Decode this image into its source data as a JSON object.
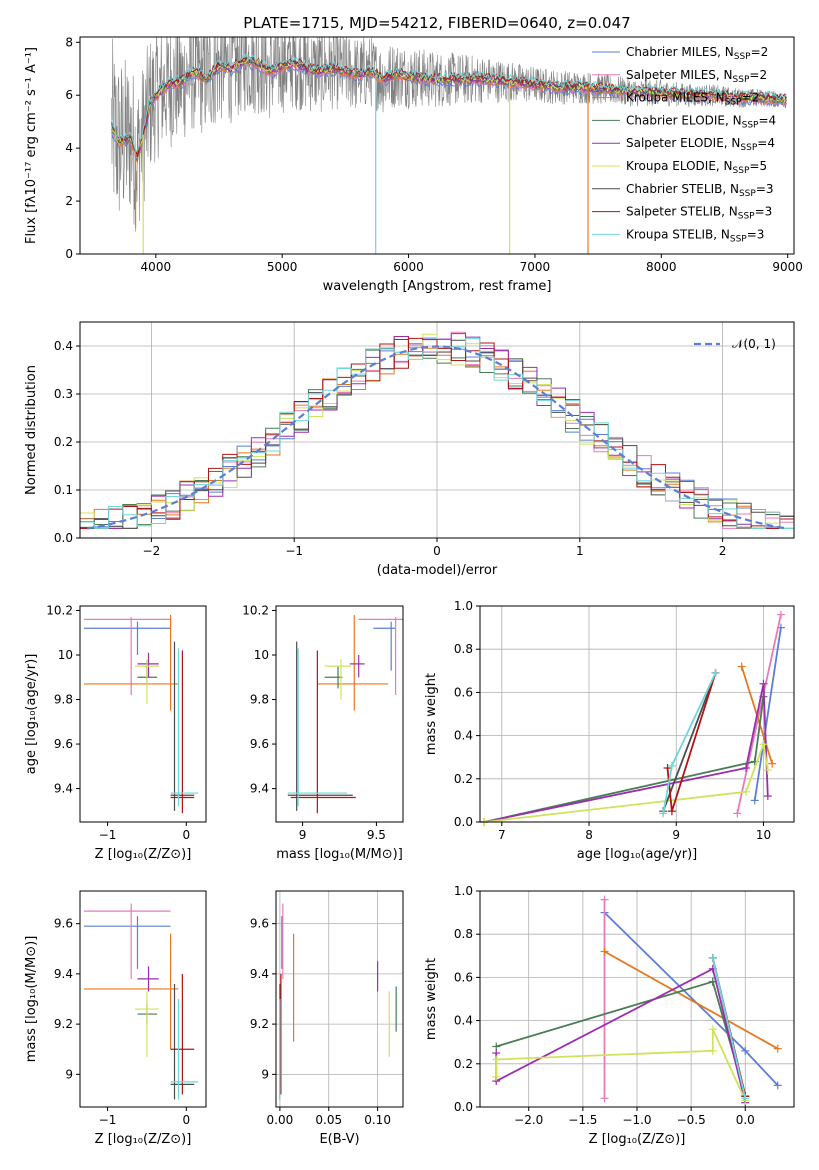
{
  "title": "PLATE=1715, MJD=54212, FIBERID=0640, z=0.047",
  "colors": {
    "Chabrier MILES": "#5b7fd6",
    "Salpeter MILES": "#e87ab8",
    "Kroupa MILES": "#e6781e",
    "Chabrier ELODIE": "#4a7c55",
    "Salpeter ELODIE": "#9a2db0",
    "Kroupa ELODIE": "#cfe35a",
    "Chabrier STELIB": "#4d4d4d",
    "Salpeter STELIB": "#b31313",
    "Kroupa STELIB": "#6fd6d9",
    "data": "#808080",
    "normal": "#5b7fd6"
  },
  "chart_data": [
    {
      "id": "spectrum",
      "type": "line",
      "xlabel": "wavelength [Angstrom, rest frame]",
      "ylabel": "Flux [fλ10⁻¹⁷ erg cm⁻² s⁻¹ A⁻¹]",
      "xlim": [
        3400,
        9050
      ],
      "ylim": [
        0,
        8.2
      ],
      "xticks": [
        4000,
        5000,
        6000,
        7000,
        8000,
        9000
      ],
      "yticks": [
        0,
        2,
        4,
        6,
        8
      ],
      "legend_position": "upper right",
      "legend": [
        {
          "label": "Chabrier MILES, N",
          "sub": "SSP",
          "suffix": "=2"
        },
        {
          "label": "Salpeter MILES, N",
          "sub": "SSP",
          "suffix": "=2"
        },
        {
          "label": "Kroupa MILES, N",
          "sub": "SSP",
          "suffix": "=2"
        },
        {
          "label": "Chabrier ELODIE, N",
          "sub": "SSP",
          "suffix": "=4"
        },
        {
          "label": "Salpeter ELODIE, N",
          "sub": "SSP",
          "suffix": "=4"
        },
        {
          "label": "Kroupa ELODIE, N",
          "sub": "SSP",
          "suffix": "=5"
        },
        {
          "label": "Chabrier STELIB, N",
          "sub": "SSP",
          "suffix": "=3"
        },
        {
          "label": "Salpeter STELIB, N",
          "sub": "SSP",
          "suffix": "=3"
        },
        {
          "label": "Kroupa STELIB, N",
          "sub": "SSP",
          "suffix": "=3"
        }
      ],
      "model_continuum": [
        [
          3650,
          4.8
        ],
        [
          3700,
          4.2
        ],
        [
          3800,
          4.4
        ],
        [
          3850,
          3.6
        ],
        [
          3900,
          4.5
        ],
        [
          3950,
          5.6
        ],
        [
          4000,
          6.0
        ],
        [
          4100,
          6.4
        ],
        [
          4200,
          6.5
        ],
        [
          4300,
          6.9
        ],
        [
          4400,
          6.6
        ],
        [
          4500,
          7.1
        ],
        [
          4600,
          7.0
        ],
        [
          4700,
          7.3
        ],
        [
          4800,
          7.2
        ],
        [
          4900,
          6.9
        ],
        [
          5000,
          7.1
        ],
        [
          5100,
          7.2
        ],
        [
          5200,
          7.0
        ],
        [
          5300,
          6.9
        ],
        [
          5400,
          7.0
        ],
        [
          5500,
          6.9
        ],
        [
          5600,
          6.8
        ],
        [
          5700,
          6.9
        ],
        [
          5800,
          6.6
        ],
        [
          5900,
          6.8
        ],
        [
          6000,
          6.7
        ],
        [
          6200,
          6.6
        ],
        [
          6400,
          6.6
        ],
        [
          6600,
          6.6
        ],
        [
          6800,
          6.5
        ],
        [
          7000,
          6.4
        ],
        [
          7200,
          6.3
        ],
        [
          7400,
          6.3
        ],
        [
          7600,
          6.2
        ],
        [
          7800,
          6.1
        ],
        [
          8000,
          6.1
        ],
        [
          8200,
          6.0
        ],
        [
          8400,
          6.0
        ],
        [
          8600,
          5.9
        ],
        [
          8800,
          5.9
        ],
        [
          8990,
          5.8
        ]
      ],
      "model_drops": [
        [
          3840,
          1.0,
          "Kroupa MILES"
        ],
        [
          3900,
          0.0,
          "Kroupa ELODIE"
        ],
        [
          5740,
          0.0,
          "Kroupa STELIB"
        ],
        [
          6800,
          0.0,
          "Kroupa ELODIE"
        ],
        [
          7420,
          0.0,
          "Kroupa MILES"
        ]
      ],
      "data_noise_envelope": [
        [
          3650,
          3.5
        ],
        [
          4000,
          2.5
        ],
        [
          5000,
          1.8
        ],
        [
          6000,
          1.2
        ],
        [
          7000,
          0.7
        ],
        [
          8000,
          0.5
        ],
        [
          9000,
          0.3
        ]
      ]
    },
    {
      "id": "residuals",
      "type": "histogram",
      "xlabel": "(data-model)/error",
      "ylabel": "Normed distribution",
      "xlim": [
        -2.5,
        2.5
      ],
      "ylim": [
        0,
        0.45
      ],
      "xticks": [
        -2,
        -1,
        0,
        1,
        2
      ],
      "yticks": [
        0.0,
        0.1,
        0.2,
        0.3,
        0.4
      ],
      "legend": "𝒩(0, 1)",
      "legend_position": "upper right",
      "bin_width": 0.1,
      "bin_start": -2.5
    },
    {
      "id": "age-vs-Z",
      "type": "errorbar",
      "xlabel": "Z [log₁₀(Z/Z⊙)]",
      "ylabel": "age  [log₁₀(age/yr)]",
      "xlim": [
        -1.35,
        0.25
      ],
      "ylim": [
        9.25,
        10.22
      ],
      "xticks": [
        -1,
        0
      ],
      "yticks": [
        9.4,
        9.6,
        9.8,
        10.0,
        10.2
      ],
      "points": [
        {
          "model": "Chabrier MILES",
          "x": -0.62,
          "y": 10.12,
          "xlo": -1.3,
          "xhi": -0.2,
          "ylo": 10.0,
          "yhi": 10.15
        },
        {
          "model": "Salpeter MILES",
          "x": -0.7,
          "y": 10.16,
          "xlo": -1.3,
          "xhi": -0.2,
          "ylo": 9.82,
          "yhi": 10.17
        },
        {
          "model": "Kroupa MILES",
          "x": -0.2,
          "y": 9.87,
          "xlo": -1.3,
          "xhi": -0.1,
          "ylo": 9.75,
          "yhi": 10.18
        },
        {
          "model": "Chabrier ELODIE",
          "x": -0.5,
          "y": 9.9,
          "xlo": -0.62,
          "xhi": -0.37,
          "ylo": 9.87,
          "yhi": 9.98
        },
        {
          "model": "Salpeter ELODIE",
          "x": -0.48,
          "y": 9.96,
          "xlo": -0.62,
          "xhi": -0.35,
          "ylo": 9.9,
          "yhi": 10.01
        },
        {
          "model": "Kroupa ELODIE",
          "x": -0.5,
          "y": 9.95,
          "xlo": -0.65,
          "xhi": -0.35,
          "ylo": 9.78,
          "yhi": 9.98
        },
        {
          "model": "Chabrier STELIB",
          "x": -0.15,
          "y": 9.37,
          "xlo": -0.2,
          "xhi": 0.1,
          "ylo": 9.3,
          "yhi": 10.06
        },
        {
          "model": "Salpeter STELIB",
          "x": -0.05,
          "y": 9.36,
          "xlo": -0.2,
          "xhi": 0.1,
          "ylo": 9.29,
          "yhi": 10.02
        },
        {
          "model": "Kroupa STELIB",
          "x": -0.1,
          "y": 9.38,
          "xlo": -0.2,
          "xhi": 0.15,
          "ylo": 9.32,
          "yhi": 10.03
        }
      ]
    },
    {
      "id": "age-vs-mass",
      "type": "errorbar",
      "xlabel": "mass [log₁₀(M/M⊙)]",
      "ylabel": "",
      "xlim": [
        8.82,
        9.68
      ],
      "ylim": [
        9.25,
        10.22
      ],
      "xticks": [
        9.0,
        9.5
      ],
      "yticks": [
        9.4,
        9.6,
        9.8,
        10.0,
        10.2
      ],
      "points": [
        {
          "model": "Chabrier MILES",
          "x": 9.6,
          "y": 10.12,
          "xlo": 9.48,
          "xhi": 9.63,
          "ylo": 9.93,
          "yhi": 10.15
        },
        {
          "model": "Salpeter MILES",
          "x": 9.63,
          "y": 10.16,
          "xlo": 9.38,
          "xhi": 9.68,
          "ylo": 9.82,
          "yhi": 10.17
        },
        {
          "model": "Kroupa MILES",
          "x": 9.35,
          "y": 9.87,
          "xlo": 9.1,
          "xhi": 9.58,
          "ylo": 9.75,
          "yhi": 10.18
        },
        {
          "model": "Chabrier ELODIE",
          "x": 9.24,
          "y": 9.9,
          "xlo": 9.15,
          "xhi": 9.27,
          "ylo": 9.85,
          "yhi": 9.95
        },
        {
          "model": "Salpeter ELODIE",
          "x": 9.38,
          "y": 9.96,
          "xlo": 9.32,
          "xhi": 9.42,
          "ylo": 9.9,
          "yhi": 10.0
        },
        {
          "model": "Kroupa ELODIE",
          "x": 9.26,
          "y": 9.95,
          "xlo": 9.15,
          "xhi": 9.33,
          "ylo": 9.8,
          "yhi": 9.98
        },
        {
          "model": "Chabrier STELIB",
          "x": 8.96,
          "y": 9.37,
          "xlo": 8.9,
          "xhi": 9.34,
          "ylo": 9.3,
          "yhi": 10.06
        },
        {
          "model": "Salpeter STELIB",
          "x": 9.1,
          "y": 9.36,
          "xlo": 8.92,
          "xhi": 9.36,
          "ylo": 9.29,
          "yhi": 10.02
        },
        {
          "model": "Kroupa STELIB",
          "x": 8.97,
          "y": 9.38,
          "xlo": 8.9,
          "xhi": 9.3,
          "ylo": 9.32,
          "yhi": 10.03
        }
      ]
    },
    {
      "id": "weight-vs-age",
      "type": "line",
      "xlabel": "age  [log₁₀(age/yr)]",
      "ylabel": "mass weight",
      "xlim": [
        6.75,
        10.35
      ],
      "ylim": [
        0,
        1.0
      ],
      "xticks": [
        7,
        8,
        9,
        10
      ],
      "yticks": [
        0.0,
        0.2,
        0.4,
        0.6,
        0.8,
        1.0
      ],
      "series": [
        {
          "model": "Chabrier MILES",
          "x": [
            10.2,
            9.9
          ],
          "y": [
            0.9,
            0.1
          ]
        },
        {
          "model": "Salpeter MILES",
          "x": [
            9.7,
            10.2
          ],
          "y": [
            0.04,
            0.96
          ]
        },
        {
          "model": "Kroupa MILES",
          "x": [
            9.75,
            10.1
          ],
          "y": [
            0.72,
            0.27
          ]
        },
        {
          "model": "Chabrier ELODIE",
          "x": [
            6.8,
            9.9,
            10.0
          ],
          "y": [
            0.0,
            0.28,
            0.58
          ]
        },
        {
          "model": "Salpeter ELODIE",
          "x": [
            6.8,
            9.8,
            10.0,
            10.05
          ],
          "y": [
            0.0,
            0.25,
            0.64,
            0.12
          ]
        },
        {
          "model": "Kroupa ELODIE",
          "x": [
            6.8,
            9.8,
            10.0,
            10.05
          ],
          "y": [
            0.0,
            0.14,
            0.36,
            0.24
          ]
        },
        {
          "model": "Chabrier STELIB",
          "x": [
            8.85,
            9.45
          ],
          "y": [
            0.05,
            0.69
          ]
        },
        {
          "model": "Salpeter STELIB",
          "x": [
            8.9,
            8.95,
            9.45
          ],
          "y": [
            0.25,
            0.05,
            0.69
          ]
        },
        {
          "model": "Kroupa STELIB",
          "x": [
            8.85,
            8.95,
            9.45
          ],
          "y": [
            0.04,
            0.26,
            0.69
          ]
        }
      ]
    },
    {
      "id": "mass-vs-Z",
      "type": "errorbar",
      "xlabel": "Z [log₁₀(Z/Z⊙)]",
      "ylabel": "mass [log₁₀(M/M⊙)]",
      "xlim": [
        -1.35,
        0.25
      ],
      "ylim": [
        8.87,
        9.73
      ],
      "xticks": [
        -1,
        0
      ],
      "yticks": [
        9.0,
        9.2,
        9.4,
        9.6
      ],
      "points": [
        {
          "model": "Chabrier MILES",
          "x": -0.62,
          "y": 9.59,
          "xlo": -1.3,
          "xhi": -0.2,
          "ylo": 9.42,
          "yhi": 9.63
        },
        {
          "model": "Salpeter MILES",
          "x": -0.7,
          "y": 9.65,
          "xlo": -1.3,
          "xhi": -0.2,
          "ylo": 9.38,
          "yhi": 9.68
        },
        {
          "model": "Kroupa MILES",
          "x": -0.2,
          "y": 9.34,
          "xlo": -1.3,
          "xhi": -0.1,
          "ylo": 9.1,
          "yhi": 9.56
        },
        {
          "model": "Chabrier ELODIE",
          "x": -0.5,
          "y": 9.24,
          "xlo": -0.62,
          "xhi": -0.37,
          "ylo": 9.2,
          "yhi": 9.28
        },
        {
          "model": "Salpeter ELODIE",
          "x": -0.48,
          "y": 9.38,
          "xlo": -0.62,
          "xhi": -0.35,
          "ylo": 9.33,
          "yhi": 9.43
        },
        {
          "model": "Kroupa ELODIE",
          "x": -0.5,
          "y": 9.26,
          "xlo": -0.65,
          "xhi": -0.35,
          "ylo": 9.07,
          "yhi": 9.33
        },
        {
          "model": "Chabrier STELIB",
          "x": -0.15,
          "y": 8.96,
          "xlo": -0.2,
          "xhi": 0.1,
          "ylo": 8.9,
          "yhi": 9.36
        },
        {
          "model": "Salpeter STELIB",
          "x": -0.05,
          "y": 9.1,
          "xlo": -0.2,
          "xhi": 0.1,
          "ylo": 8.92,
          "yhi": 9.4
        },
        {
          "model": "Kroupa STELIB",
          "x": -0.1,
          "y": 8.97,
          "xlo": -0.2,
          "xhi": 0.15,
          "ylo": 8.9,
          "yhi": 9.3
        }
      ]
    },
    {
      "id": "mass-vs-EBV",
      "type": "errorbar",
      "xlabel": "E(B-V)",
      "ylabel": "",
      "xlim": [
        -0.004,
        0.126
      ],
      "ylim": [
        8.87,
        9.73
      ],
      "xticks": [
        0.0,
        0.05,
        0.1
      ],
      "xticklabels": [
        "0.00",
        "0.05",
        "0.10"
      ],
      "yticks": [
        9.0,
        9.2,
        9.4,
        9.6
      ],
      "points": [
        {
          "model": "Chabrier MILES",
          "x": 0.002,
          "y": 9.59,
          "ylo": 9.42,
          "yhi": 9.63
        },
        {
          "model": "Salpeter MILES",
          "x": 0.003,
          "y": 9.65,
          "ylo": 9.38,
          "yhi": 9.68
        },
        {
          "model": "Kroupa MILES",
          "x": 0.014,
          "y": 9.34,
          "ylo": 9.13,
          "yhi": 9.56
        },
        {
          "model": "Chabrier ELODIE",
          "x": 0.119,
          "y": 9.24,
          "ylo": 9.17,
          "yhi": 9.35
        },
        {
          "model": "Salpeter ELODIE",
          "x": 0.1,
          "y": 9.38,
          "ylo": 9.33,
          "yhi": 9.45
        },
        {
          "model": "Kroupa ELODIE",
          "x": 0.112,
          "y": 9.26,
          "ylo": 9.07,
          "yhi": 9.33
        },
        {
          "model": "Chabrier STELIB",
          "x": 0.0,
          "y": 8.96,
          "ylo": 8.9,
          "yhi": 9.36
        },
        {
          "model": "Salpeter STELIB",
          "x": 0.001,
          "y": 9.1,
          "ylo": 8.92,
          "yhi": 9.4
        },
        {
          "model": "Kroupa STELIB",
          "x": 0.0,
          "y": 8.97,
          "ylo": 8.9,
          "yhi": 9.3
        }
      ]
    },
    {
      "id": "weight-vs-Z",
      "type": "line",
      "xlabel": "Z [log₁₀(Z/Z⊙)]",
      "ylabel": "mass weight",
      "xlim": [
        -2.45,
        0.45
      ],
      "ylim": [
        0,
        1.0
      ],
      "xticks": [
        -2.0,
        -1.5,
        -1.0,
        -0.5,
        0.0
      ],
      "xticklabels": [
        "−2.0",
        "−1.5",
        "−1.0",
        "−0.5",
        "0.0"
      ],
      "yticks": [
        0.0,
        0.2,
        0.4,
        0.6,
        0.8,
        1.0
      ],
      "series": [
        {
          "model": "Chabrier MILES",
          "x": [
            -1.3,
            0.0,
            0.3
          ],
          "y": [
            0.9,
            0.26,
            0.1
          ]
        },
        {
          "model": "Salpeter MILES",
          "x": [
            -1.3,
            -1.3
          ],
          "y": [
            0.96,
            0.04
          ]
        },
        {
          "model": "Kroupa MILES",
          "x": [
            -1.3,
            0.3
          ],
          "y": [
            0.72,
            0.27
          ]
        },
        {
          "model": "Chabrier ELODIE",
          "x": [
            -2.3,
            -0.3,
            -0.3,
            0.0
          ],
          "y": [
            0.28,
            0.58,
            0.58,
            0.05
          ]
        },
        {
          "model": "Salpeter ELODIE",
          "x": [
            -2.3,
            -2.3,
            -0.3,
            0.0
          ],
          "y": [
            0.25,
            0.12,
            0.64,
            0.02
          ]
        },
        {
          "model": "Kroupa ELODIE",
          "x": [
            -2.3,
            -2.3,
            -0.3,
            -0.3,
            0.0
          ],
          "y": [
            0.14,
            0.22,
            0.26,
            0.36,
            0.03
          ]
        },
        {
          "model": "Chabrier STELIB",
          "x": [
            -0.3,
            0.0
          ],
          "y": [
            0.69,
            0.05
          ]
        },
        {
          "model": "Salpeter STELIB",
          "x": [
            -0.3,
            0.0
          ],
          "y": [
            0.69,
            0.05
          ]
        },
        {
          "model": "Kroupa STELIB",
          "x": [
            -0.3,
            0.0
          ],
          "y": [
            0.69,
            0.04
          ]
        }
      ]
    }
  ]
}
